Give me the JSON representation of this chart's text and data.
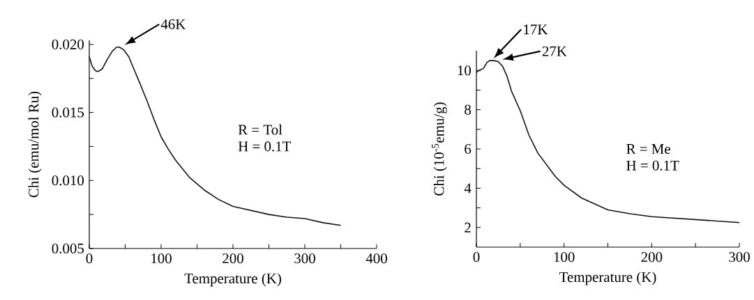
{
  "chart_data": [
    {
      "type": "line",
      "xlabel": "Temperature (K)",
      "ylabel": "Chi (emu/mol Ru)",
      "x": [
        0,
        4,
        8,
        12,
        18,
        25,
        32,
        38,
        42,
        48,
        55,
        62,
        70,
        80,
        90,
        100,
        110,
        120,
        140,
        160,
        180,
        200,
        225,
        250,
        275,
        300,
        325,
        350
      ],
      "series": [
        {
          "color": "#111111",
          "values": [
            0.0191,
            0.0184,
            0.0181,
            0.018,
            0.0182,
            0.0189,
            0.0195,
            0.0198,
            0.0198,
            0.0196,
            0.0191,
            0.0182,
            0.0172,
            0.0159,
            0.0145,
            0.0132,
            0.0123,
            0.0115,
            0.0102,
            0.0093,
            0.0086,
            0.0081,
            0.0078,
            0.0075,
            0.0073,
            0.0072,
            0.0069,
            0.0067
          ]
        }
      ],
      "xlim": [
        0,
        400
      ],
      "ylim": [
        0.005,
        0.0203
      ],
      "xticks": [
        0,
        {
          "value": 50,
          "label": null
        },
        100,
        {
          "value": 150,
          "label": null
        },
        200,
        {
          "value": 250,
          "label": null
        },
        300,
        {
          "value": 350,
          "label": null
        },
        400
      ],
      "yticks": [
        0.005,
        {
          "value": 0.0075,
          "label": null
        },
        {
          "value": 0.01,
          "label": "0.010"
        },
        {
          "value": 0.0125,
          "label": null
        },
        0.015,
        {
          "value": 0.0175,
          "label": null
        },
        {
          "value": 0.02,
          "label": "0.020"
        }
      ],
      "annotations": [
        {
          "text": "46K",
          "x": 46,
          "y": 0.0198
        },
        "R = Tol",
        "H = 0.1T"
      ]
    },
    {
      "type": "line",
      "xlabel": "Temperature (K)",
      "ylabel": "Chi (10$^{-5}$emu/g)",
      "x": [
        0,
        3,
        8,
        12,
        15,
        20,
        25,
        30,
        35,
        40,
        50,
        60,
        70,
        80,
        90,
        100,
        120,
        150,
        175,
        200,
        250,
        300
      ],
      "series": [
        {
          "color": "#111111",
          "values": [
            9.9,
            10.0,
            10.1,
            10.4,
            10.5,
            10.5,
            10.45,
            10.2,
            9.7,
            8.95,
            7.95,
            6.7,
            5.8,
            5.2,
            4.6,
            4.15,
            3.5,
            2.9,
            2.7,
            2.55,
            2.4,
            2.25
          ]
        }
      ],
      "xlim": [
        0,
        300
      ],
      "ylim": [
        1,
        11
      ],
      "xticks": [
        0,
        {
          "value": 50,
          "label": null
        },
        100,
        {
          "value": 150,
          "label": null
        },
        200,
        {
          "value": 250,
          "label": null
        },
        300
      ],
      "yticks": [
        2,
        {
          "value": 3,
          "label": null
        },
        4,
        {
          "value": 5,
          "label": null
        },
        6,
        {
          "value": 7,
          "label": null
        },
        8,
        {
          "value": 9,
          "label": null
        },
        10
      ],
      "annotations": [
        {
          "text": "17K",
          "x": 17,
          "y": 10.5
        },
        {
          "text": "27K",
          "x": 27,
          "y": 10.45
        },
        "R = Me",
        "H = 0.1T"
      ]
    }
  ]
}
